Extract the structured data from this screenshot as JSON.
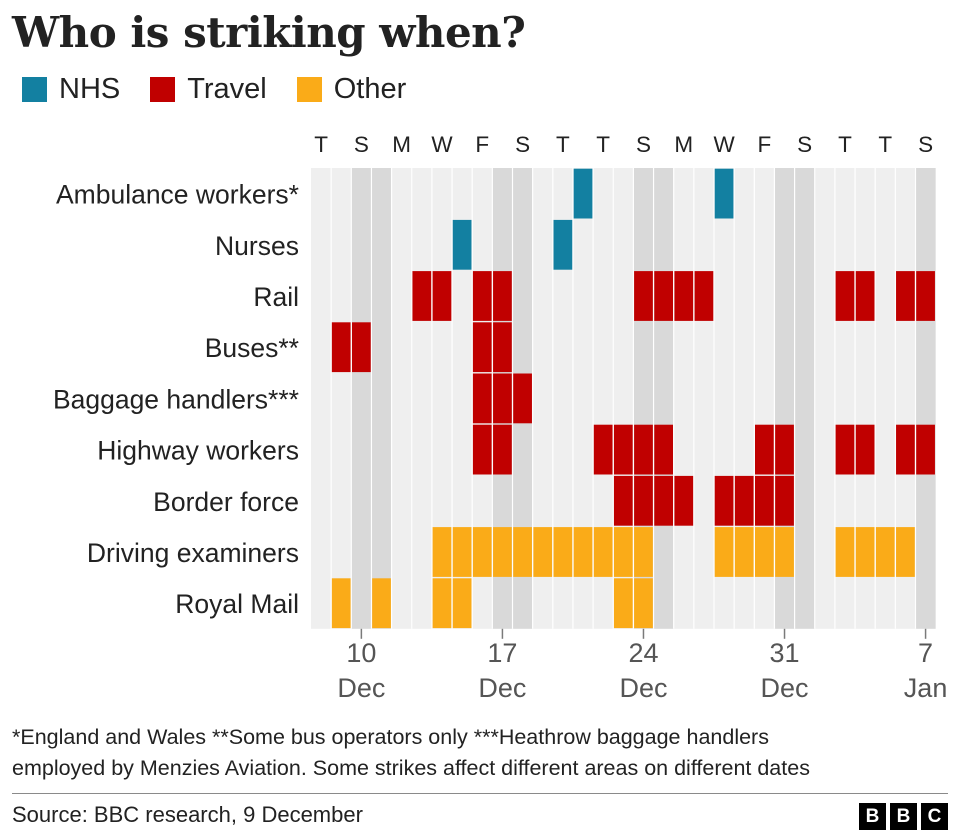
{
  "title": "Who is striking when?",
  "legend": [
    {
      "label": "NHS",
      "color": "#1380A1"
    },
    {
      "label": "Travel",
      "color": "#C00000"
    },
    {
      "label": "Other",
      "color": "#FAAB18"
    }
  ],
  "notes": [
    "*England and Wales **Some bus operators only ***Heathrow baggage handlers",
    "employed by Menzies Aviation. Some strikes affect different areas on different dates"
  ],
  "source": "Source: BBC research, 9 December",
  "logo": [
    "B",
    "B",
    "C"
  ],
  "chart_data": {
    "type": "heatmap",
    "x_day_letters": [
      "T",
      "S",
      "M",
      "W",
      "F",
      "S",
      "T",
      "T",
      "S",
      "M",
      "W",
      "F",
      "S",
      "T",
      "T",
      "S"
    ],
    "x_dates": [
      "2022-12-08",
      "2022-12-09",
      "2022-12-10",
      "2022-12-11",
      "2022-12-12",
      "2022-12-13",
      "2022-12-14",
      "2022-12-15",
      "2022-12-16",
      "2022-12-17",
      "2022-12-18",
      "2022-12-19",
      "2022-12-20",
      "2022-12-21",
      "2022-12-22",
      "2022-12-23",
      "2022-12-24",
      "2022-12-25",
      "2022-12-26",
      "2022-12-27",
      "2022-12-28",
      "2022-12-29",
      "2022-12-30",
      "2022-12-31",
      "2023-01-01",
      "2023-01-02",
      "2023-01-03",
      "2023-01-04",
      "2023-01-05",
      "2023-01-06",
      "2023-01-07"
    ],
    "weekend_dates": [
      "2022-12-10",
      "2022-12-11",
      "2022-12-17",
      "2022-12-18",
      "2022-12-24",
      "2022-12-25",
      "2022-12-31",
      "2023-01-01",
      "2023-01-07"
    ],
    "x_ticks": [
      {
        "date": "2022-12-10",
        "day": "10",
        "month": "Dec"
      },
      {
        "date": "2022-12-17",
        "day": "17",
        "month": "Dec"
      },
      {
        "date": "2022-12-24",
        "day": "24",
        "month": "Dec"
      },
      {
        "date": "2022-12-31",
        "day": "31",
        "month": "Dec"
      },
      {
        "date": "2023-01-07",
        "day": "7",
        "month": "Jan"
      }
    ],
    "color_key": {
      "NHS": "#1380A1",
      "Travel": "#C00000",
      "Other": "#FAAB18"
    },
    "rows": [
      {
        "label": "Ambulance workers*",
        "category": "NHS",
        "dates": [
          "2022-12-21",
          "2022-12-28"
        ]
      },
      {
        "label": "Nurses",
        "category": "NHS",
        "dates": [
          "2022-12-15",
          "2022-12-20"
        ]
      },
      {
        "label": "Rail",
        "category": "Travel",
        "dates": [
          "2022-12-13",
          "2022-12-14",
          "2022-12-16",
          "2022-12-17",
          "2022-12-24",
          "2022-12-25",
          "2022-12-26",
          "2022-12-27",
          "2023-01-03",
          "2023-01-04",
          "2023-01-06",
          "2023-01-07"
        ]
      },
      {
        "label": "Buses**",
        "category": "Travel",
        "dates": [
          "2022-12-09",
          "2022-12-10",
          "2022-12-16",
          "2022-12-17"
        ]
      },
      {
        "label": "Baggage handlers***",
        "category": "Travel",
        "dates": [
          "2022-12-16",
          "2022-12-17",
          "2022-12-18"
        ]
      },
      {
        "label": "Highway workers",
        "category": "Travel",
        "dates": [
          "2022-12-16",
          "2022-12-17",
          "2022-12-22",
          "2022-12-23",
          "2022-12-24",
          "2022-12-25",
          "2022-12-30",
          "2022-12-31",
          "2023-01-03",
          "2023-01-04",
          "2023-01-06",
          "2023-01-07"
        ]
      },
      {
        "label": "Border force",
        "category": "Travel",
        "dates": [
          "2022-12-23",
          "2022-12-24",
          "2022-12-25",
          "2022-12-26",
          "2022-12-28",
          "2022-12-29",
          "2022-12-30",
          "2022-12-31"
        ]
      },
      {
        "label": "Driving examiners",
        "category": "Other",
        "dates": [
          "2022-12-14",
          "2022-12-15",
          "2022-12-16",
          "2022-12-17",
          "2022-12-18",
          "2022-12-19",
          "2022-12-20",
          "2022-12-21",
          "2022-12-22",
          "2022-12-23",
          "2022-12-24",
          "2022-12-28",
          "2022-12-29",
          "2022-12-30",
          "2022-12-31",
          "2023-01-03",
          "2023-01-04",
          "2023-01-05",
          "2023-01-06"
        ]
      },
      {
        "label": "Royal Mail",
        "category": "Other",
        "dates": [
          "2022-12-09",
          "2022-12-11",
          "2022-12-14",
          "2022-12-15",
          "2022-12-23",
          "2022-12-24"
        ]
      }
    ]
  }
}
